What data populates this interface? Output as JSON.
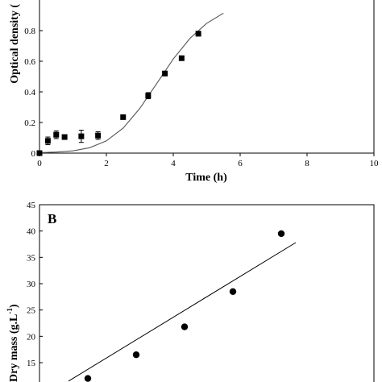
{
  "chart_data": [
    {
      "type": "scatter",
      "panel": "",
      "xlabel": "Time (h)",
      "ylabel": "Optical density (",
      "xlim": [
        0,
        10
      ],
      "ylim": [
        0,
        1.0
      ],
      "xticks": [
        "0",
        "2",
        "4",
        "6",
        "8",
        "10"
      ],
      "yticks": [
        "0",
        "0.2",
        "0.4",
        "0.6",
        "0.8"
      ],
      "series": [
        {
          "marker": "square",
          "x": [
            0,
            0.25,
            0.5,
            0.75,
            1.25,
            1.75,
            2.5,
            3.25,
            3.75,
            4.25,
            4.75
          ],
          "y": [
            0.0,
            0.08,
            0.12,
            0.105,
            0.11,
            0.115,
            0.235,
            0.375,
            0.52,
            0.62,
            0.78
          ],
          "err": [
            0,
            0.025,
            0.025,
            0.01,
            0.04,
            0.025,
            0.01,
            0.02,
            0.01,
            0.01,
            0.015
          ]
        },
        {
          "type": "line",
          "fit": "logistic",
          "x": [
            0,
            0.5,
            1,
            1.5,
            2,
            2.5,
            3,
            3.5,
            4,
            4.5,
            5,
            5.5
          ],
          "y": [
            0.003,
            0.007,
            0.015,
            0.035,
            0.08,
            0.163,
            0.292,
            0.453,
            0.615,
            0.75,
            0.848,
            0.914
          ]
        }
      ],
      "color": "#000000"
    },
    {
      "type": "scatter",
      "panel": "B",
      "xlabel": "",
      "ylabel": "Dry mass (g.L",
      "ylabel_sup": "-1",
      "ylabel_end": ")",
      "ylim": [
        10,
        45
      ],
      "yticks": [
        "45",
        "40",
        "35",
        "30",
        "25",
        "20",
        "15"
      ],
      "series": [
        {
          "marker": "circle",
          "x": [
            1,
            2,
            3,
            4,
            5
          ],
          "y": [
            12.0,
            16.5,
            21.8,
            28.5,
            39.5
          ]
        },
        {
          "type": "line",
          "fit": "linear",
          "x": [
            0.6,
            5.3
          ],
          "y": [
            11.5,
            37.8
          ]
        }
      ],
      "color": "#000000"
    }
  ]
}
